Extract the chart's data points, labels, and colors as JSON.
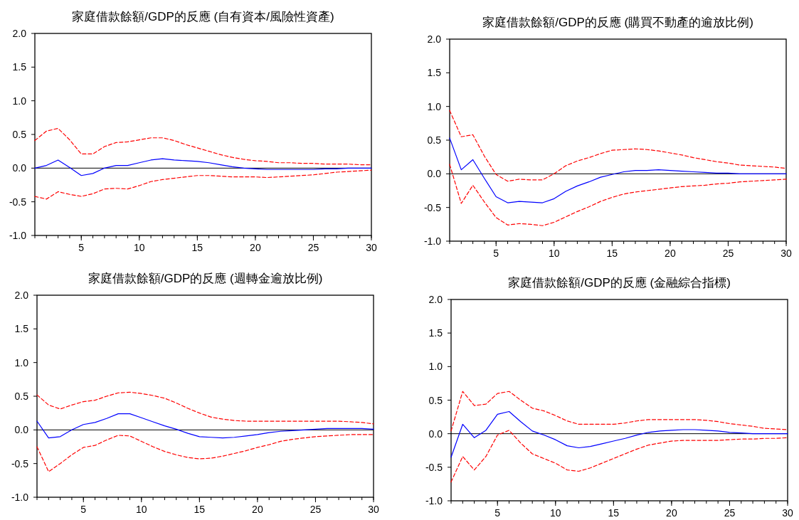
{
  "chart_data": [
    {
      "type": "line",
      "title": "家庭借款餘額/GDP的反應 (自有資本/風險性資產)",
      "x": [
        1,
        2,
        3,
        4,
        5,
        6,
        7,
        8,
        9,
        10,
        11,
        12,
        13,
        14,
        15,
        16,
        17,
        18,
        19,
        20,
        21,
        22,
        23,
        24,
        25,
        26,
        27,
        28,
        29,
        30
      ],
      "xlim": [
        1,
        30
      ],
      "xticks": [
        5,
        10,
        15,
        20,
        25,
        30
      ],
      "ylim": [
        -1,
        2
      ],
      "yticks": [
        {
          "value": -1,
          "label": "-1.0"
        },
        {
          "value": -0.5,
          "label": "-0.5"
        },
        {
          "value": 0,
          "label": "0.0"
        },
        {
          "value": 0.5,
          "label": "0.5"
        },
        {
          "value": 1,
          "label": "1.0"
        },
        {
          "value": 1.5,
          "label": "1.5"
        },
        {
          "value": 2,
          "label": "2.0"
        }
      ],
      "ref_lines": [
        {
          "axis": "y",
          "value": 0,
          "color": "#000000"
        }
      ],
      "series": [
        {
          "color": "#0000ff",
          "line_style": "solid",
          "values": [
            0.0,
            0.04,
            0.12,
            0.01,
            -0.11,
            -0.08,
            0.0,
            0.04,
            0.04,
            0.08,
            0.12,
            0.14,
            0.12,
            0.11,
            0.1,
            0.08,
            0.05,
            0.02,
            0.0,
            -0.01,
            -0.02,
            -0.02,
            -0.02,
            -0.02,
            -0.02,
            -0.01,
            -0.01,
            0.0,
            0.0,
            0.0
          ]
        },
        {
          "color": "#ff0000",
          "line_style": "dashed",
          "values": [
            0.41,
            0.55,
            0.59,
            0.42,
            0.21,
            0.21,
            0.32,
            0.38,
            0.39,
            0.42,
            0.45,
            0.45,
            0.41,
            0.35,
            0.3,
            0.25,
            0.2,
            0.16,
            0.13,
            0.11,
            0.1,
            0.08,
            0.08,
            0.07,
            0.07,
            0.06,
            0.06,
            0.06,
            0.05,
            0.05
          ]
        },
        {
          "color": "#ff0000",
          "line_style": "dashed",
          "values": [
            -0.42,
            -0.46,
            -0.35,
            -0.39,
            -0.42,
            -0.38,
            -0.31,
            -0.3,
            -0.31,
            -0.26,
            -0.2,
            -0.17,
            -0.15,
            -0.13,
            -0.11,
            -0.11,
            -0.12,
            -0.13,
            -0.13,
            -0.13,
            -0.14,
            -0.13,
            -0.12,
            -0.11,
            -0.1,
            -0.08,
            -0.06,
            -0.05,
            -0.04,
            -0.03
          ]
        }
      ]
    },
    {
      "type": "line",
      "title": "家庭借款餘額/GDP的反應 (購買不動產的逾放比例)",
      "x": [
        1,
        2,
        3,
        4,
        5,
        6,
        7,
        8,
        9,
        10,
        11,
        12,
        13,
        14,
        15,
        16,
        17,
        18,
        19,
        20,
        21,
        22,
        23,
        24,
        25,
        26,
        27,
        28,
        29,
        30
      ],
      "xlim": [
        1,
        30
      ],
      "xticks": [
        5,
        10,
        15,
        20,
        25,
        30
      ],
      "ylim": [
        -1,
        2
      ],
      "yticks": [
        {
          "value": -1,
          "label": "-1.0"
        },
        {
          "value": -0.5,
          "label": "-0.5"
        },
        {
          "value": 0,
          "label": "0.0"
        },
        {
          "value": 0.5,
          "label": "0.5"
        },
        {
          "value": 1,
          "label": "1.0"
        },
        {
          "value": 1.5,
          "label": "1.5"
        },
        {
          "value": 2,
          "label": "2.0"
        }
      ],
      "ref_lines": [
        {
          "axis": "y",
          "value": 0,
          "color": "#000000"
        }
      ],
      "series": [
        {
          "color": "#0000ff",
          "line_style": "solid",
          "values": [
            0.53,
            0.06,
            0.21,
            -0.07,
            -0.34,
            -0.43,
            -0.41,
            -0.42,
            -0.43,
            -0.37,
            -0.26,
            -0.18,
            -0.12,
            -0.05,
            -0.01,
            0.03,
            0.05,
            0.05,
            0.06,
            0.05,
            0.04,
            0.03,
            0.02,
            0.01,
            0.01,
            0.0,
            0.0,
            0.0,
            0.0,
            0.0
          ]
        },
        {
          "color": "#ff0000",
          "line_style": "dashed",
          "values": [
            0.94,
            0.55,
            0.58,
            0.26,
            -0.01,
            -0.11,
            -0.08,
            -0.09,
            -0.09,
            0.0,
            0.12,
            0.19,
            0.24,
            0.3,
            0.35,
            0.36,
            0.37,
            0.36,
            0.34,
            0.31,
            0.28,
            0.24,
            0.21,
            0.18,
            0.16,
            0.13,
            0.12,
            0.11,
            0.1,
            0.08
          ]
        },
        {
          "color": "#ff0000",
          "line_style": "dashed",
          "values": [
            0.14,
            -0.44,
            -0.17,
            -0.42,
            -0.65,
            -0.76,
            -0.74,
            -0.75,
            -0.77,
            -0.72,
            -0.64,
            -0.56,
            -0.49,
            -0.41,
            -0.35,
            -0.3,
            -0.27,
            -0.25,
            -0.23,
            -0.21,
            -0.19,
            -0.18,
            -0.17,
            -0.15,
            -0.14,
            -0.12,
            -0.11,
            -0.1,
            -0.09,
            -0.08
          ]
        }
      ]
    },
    {
      "type": "line",
      "title": "家庭借款餘額/GDP的反應 (週轉金逾放比例)",
      "x": [
        1,
        2,
        3,
        4,
        5,
        6,
        7,
        8,
        9,
        10,
        11,
        12,
        13,
        14,
        15,
        16,
        17,
        18,
        19,
        20,
        21,
        22,
        23,
        24,
        25,
        26,
        27,
        28,
        29,
        30
      ],
      "xlim": [
        1,
        30
      ],
      "xticks": [
        5,
        10,
        15,
        20,
        25,
        30
      ],
      "ylim": [
        -1,
        2
      ],
      "yticks": [
        {
          "value": -1,
          "label": "-1.0"
        },
        {
          "value": -0.5,
          "label": "-0.5"
        },
        {
          "value": 0,
          "label": "0.0"
        },
        {
          "value": 0.5,
          "label": "0.5"
        },
        {
          "value": 1,
          "label": "1.0"
        },
        {
          "value": 1.5,
          "label": "1.5"
        },
        {
          "value": 2,
          "label": "2.0"
        }
      ],
      "ref_lines": [
        {
          "axis": "y",
          "value": 0,
          "color": "#000000"
        }
      ],
      "series": [
        {
          "color": "#0000ff",
          "line_style": "solid",
          "values": [
            0.13,
            -0.12,
            -0.1,
            0.0,
            0.08,
            0.11,
            0.17,
            0.24,
            0.24,
            0.18,
            0.12,
            0.06,
            0.01,
            -0.05,
            -0.1,
            -0.11,
            -0.12,
            -0.11,
            -0.09,
            -0.07,
            -0.04,
            -0.02,
            -0.01,
            0.0,
            0.01,
            0.02,
            0.02,
            0.02,
            0.02,
            0.01
          ]
        },
        {
          "color": "#ff0000",
          "line_style": "dashed",
          "values": [
            0.52,
            0.37,
            0.31,
            0.37,
            0.42,
            0.44,
            0.5,
            0.55,
            0.56,
            0.54,
            0.51,
            0.47,
            0.4,
            0.32,
            0.25,
            0.19,
            0.16,
            0.14,
            0.13,
            0.13,
            0.13,
            0.13,
            0.13,
            0.13,
            0.13,
            0.13,
            0.13,
            0.12,
            0.11,
            0.09
          ]
        },
        {
          "color": "#ff0000",
          "line_style": "dashed",
          "values": [
            -0.25,
            -0.62,
            -0.5,
            -0.37,
            -0.26,
            -0.23,
            -0.15,
            -0.08,
            -0.09,
            -0.17,
            -0.25,
            -0.32,
            -0.37,
            -0.41,
            -0.43,
            -0.42,
            -0.39,
            -0.35,
            -0.31,
            -0.26,
            -0.22,
            -0.17,
            -0.14,
            -0.12,
            -0.1,
            -0.09,
            -0.08,
            -0.07,
            -0.07,
            -0.07
          ]
        }
      ]
    },
    {
      "type": "line",
      "title": "家庭借款餘額/GDP的反應 (金融綜合指標)",
      "x": [
        1,
        2,
        3,
        4,
        5,
        6,
        7,
        8,
        9,
        10,
        11,
        12,
        13,
        14,
        15,
        16,
        17,
        18,
        19,
        20,
        21,
        22,
        23,
        24,
        25,
        26,
        27,
        28,
        29,
        30
      ],
      "xlim": [
        1,
        30
      ],
      "xticks": [
        5,
        10,
        15,
        20,
        25,
        30
      ],
      "ylim": [
        -1,
        2
      ],
      "yticks": [
        {
          "value": -1,
          "label": "-1.0"
        },
        {
          "value": -0.5,
          "label": "-0.5"
        },
        {
          "value": 0,
          "label": "0.0"
        },
        {
          "value": 0.5,
          "label": "0.5"
        },
        {
          "value": 1,
          "label": "1.0"
        },
        {
          "value": 1.5,
          "label": "1.5"
        },
        {
          "value": 2,
          "label": "2.0"
        }
      ],
      "ref_lines": [
        {
          "axis": "y",
          "value": 0,
          "color": "#000000"
        }
      ],
      "series": [
        {
          "color": "#0000ff",
          "line_style": "solid",
          "values": [
            -0.35,
            0.14,
            -0.06,
            0.05,
            0.29,
            0.33,
            0.18,
            0.04,
            -0.02,
            -0.09,
            -0.18,
            -0.21,
            -0.19,
            -0.15,
            -0.11,
            -0.07,
            -0.02,
            0.02,
            0.04,
            0.05,
            0.06,
            0.06,
            0.05,
            0.04,
            0.02,
            0.01,
            0.0,
            0.0,
            0.0,
            0.0
          ]
        },
        {
          "color": "#ff0000",
          "line_style": "dashed",
          "values": [
            0.04,
            0.63,
            0.42,
            0.44,
            0.6,
            0.63,
            0.5,
            0.38,
            0.34,
            0.27,
            0.19,
            0.14,
            0.14,
            0.14,
            0.14,
            0.16,
            0.19,
            0.21,
            0.21,
            0.21,
            0.21,
            0.21,
            0.2,
            0.18,
            0.15,
            0.13,
            0.11,
            0.08,
            0.07,
            0.06
          ]
        },
        {
          "color": "#ff0000",
          "line_style": "dashed",
          "values": [
            -0.72,
            -0.34,
            -0.54,
            -0.34,
            -0.02,
            0.05,
            -0.14,
            -0.3,
            -0.37,
            -0.44,
            -0.54,
            -0.56,
            -0.51,
            -0.44,
            -0.37,
            -0.3,
            -0.23,
            -0.17,
            -0.14,
            -0.11,
            -0.1,
            -0.1,
            -0.1,
            -0.1,
            -0.09,
            -0.08,
            -0.08,
            -0.07,
            -0.07,
            -0.06
          ]
        }
      ]
    }
  ]
}
